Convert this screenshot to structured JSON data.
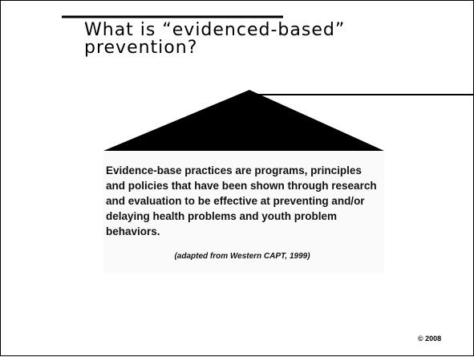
{
  "slide": {
    "title": "What is “evidenced-based” prevention?",
    "body": "Evidence-base practices are programs, principles and policies that have been shown through research and evaluation to be effective at preventing and/or delaying health problems and youth problem behaviors.",
    "citation": "(adapted from Western CAPT, 1999)",
    "footer": "© 2008"
  }
}
